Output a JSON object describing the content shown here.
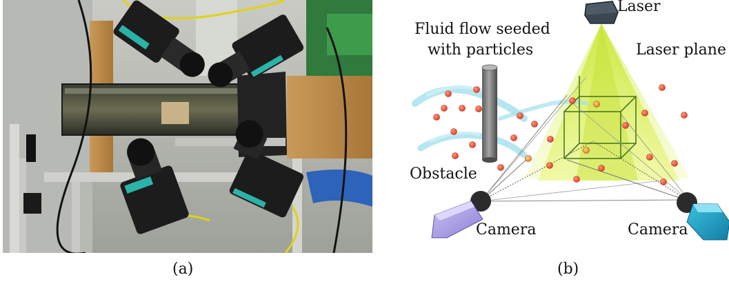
{
  "panels": {
    "a": {
      "caption": "(a)"
    },
    "b": {
      "caption": "(b)",
      "labels": {
        "laser": "Laser",
        "laser_plane": "Laser plane",
        "fluid_line1": "Fluid flow seeded",
        "fluid_line2": "with particles",
        "obstacle": "Obstacle",
        "camera_left": "Camera",
        "camera_right": "Camera"
      }
    }
  },
  "colors": {
    "laser_light": "#d8f24a",
    "particle": "#f05a3c",
    "flow": "#a8e2ee",
    "camera_left": "#a79ce0",
    "camera_right": "#1e9fc4",
    "volume": "#4a7a20"
  },
  "icons": [
    "laser-icon",
    "camera-icon",
    "obstacle-cylinder",
    "particle-dot",
    "flow-swirl"
  ]
}
